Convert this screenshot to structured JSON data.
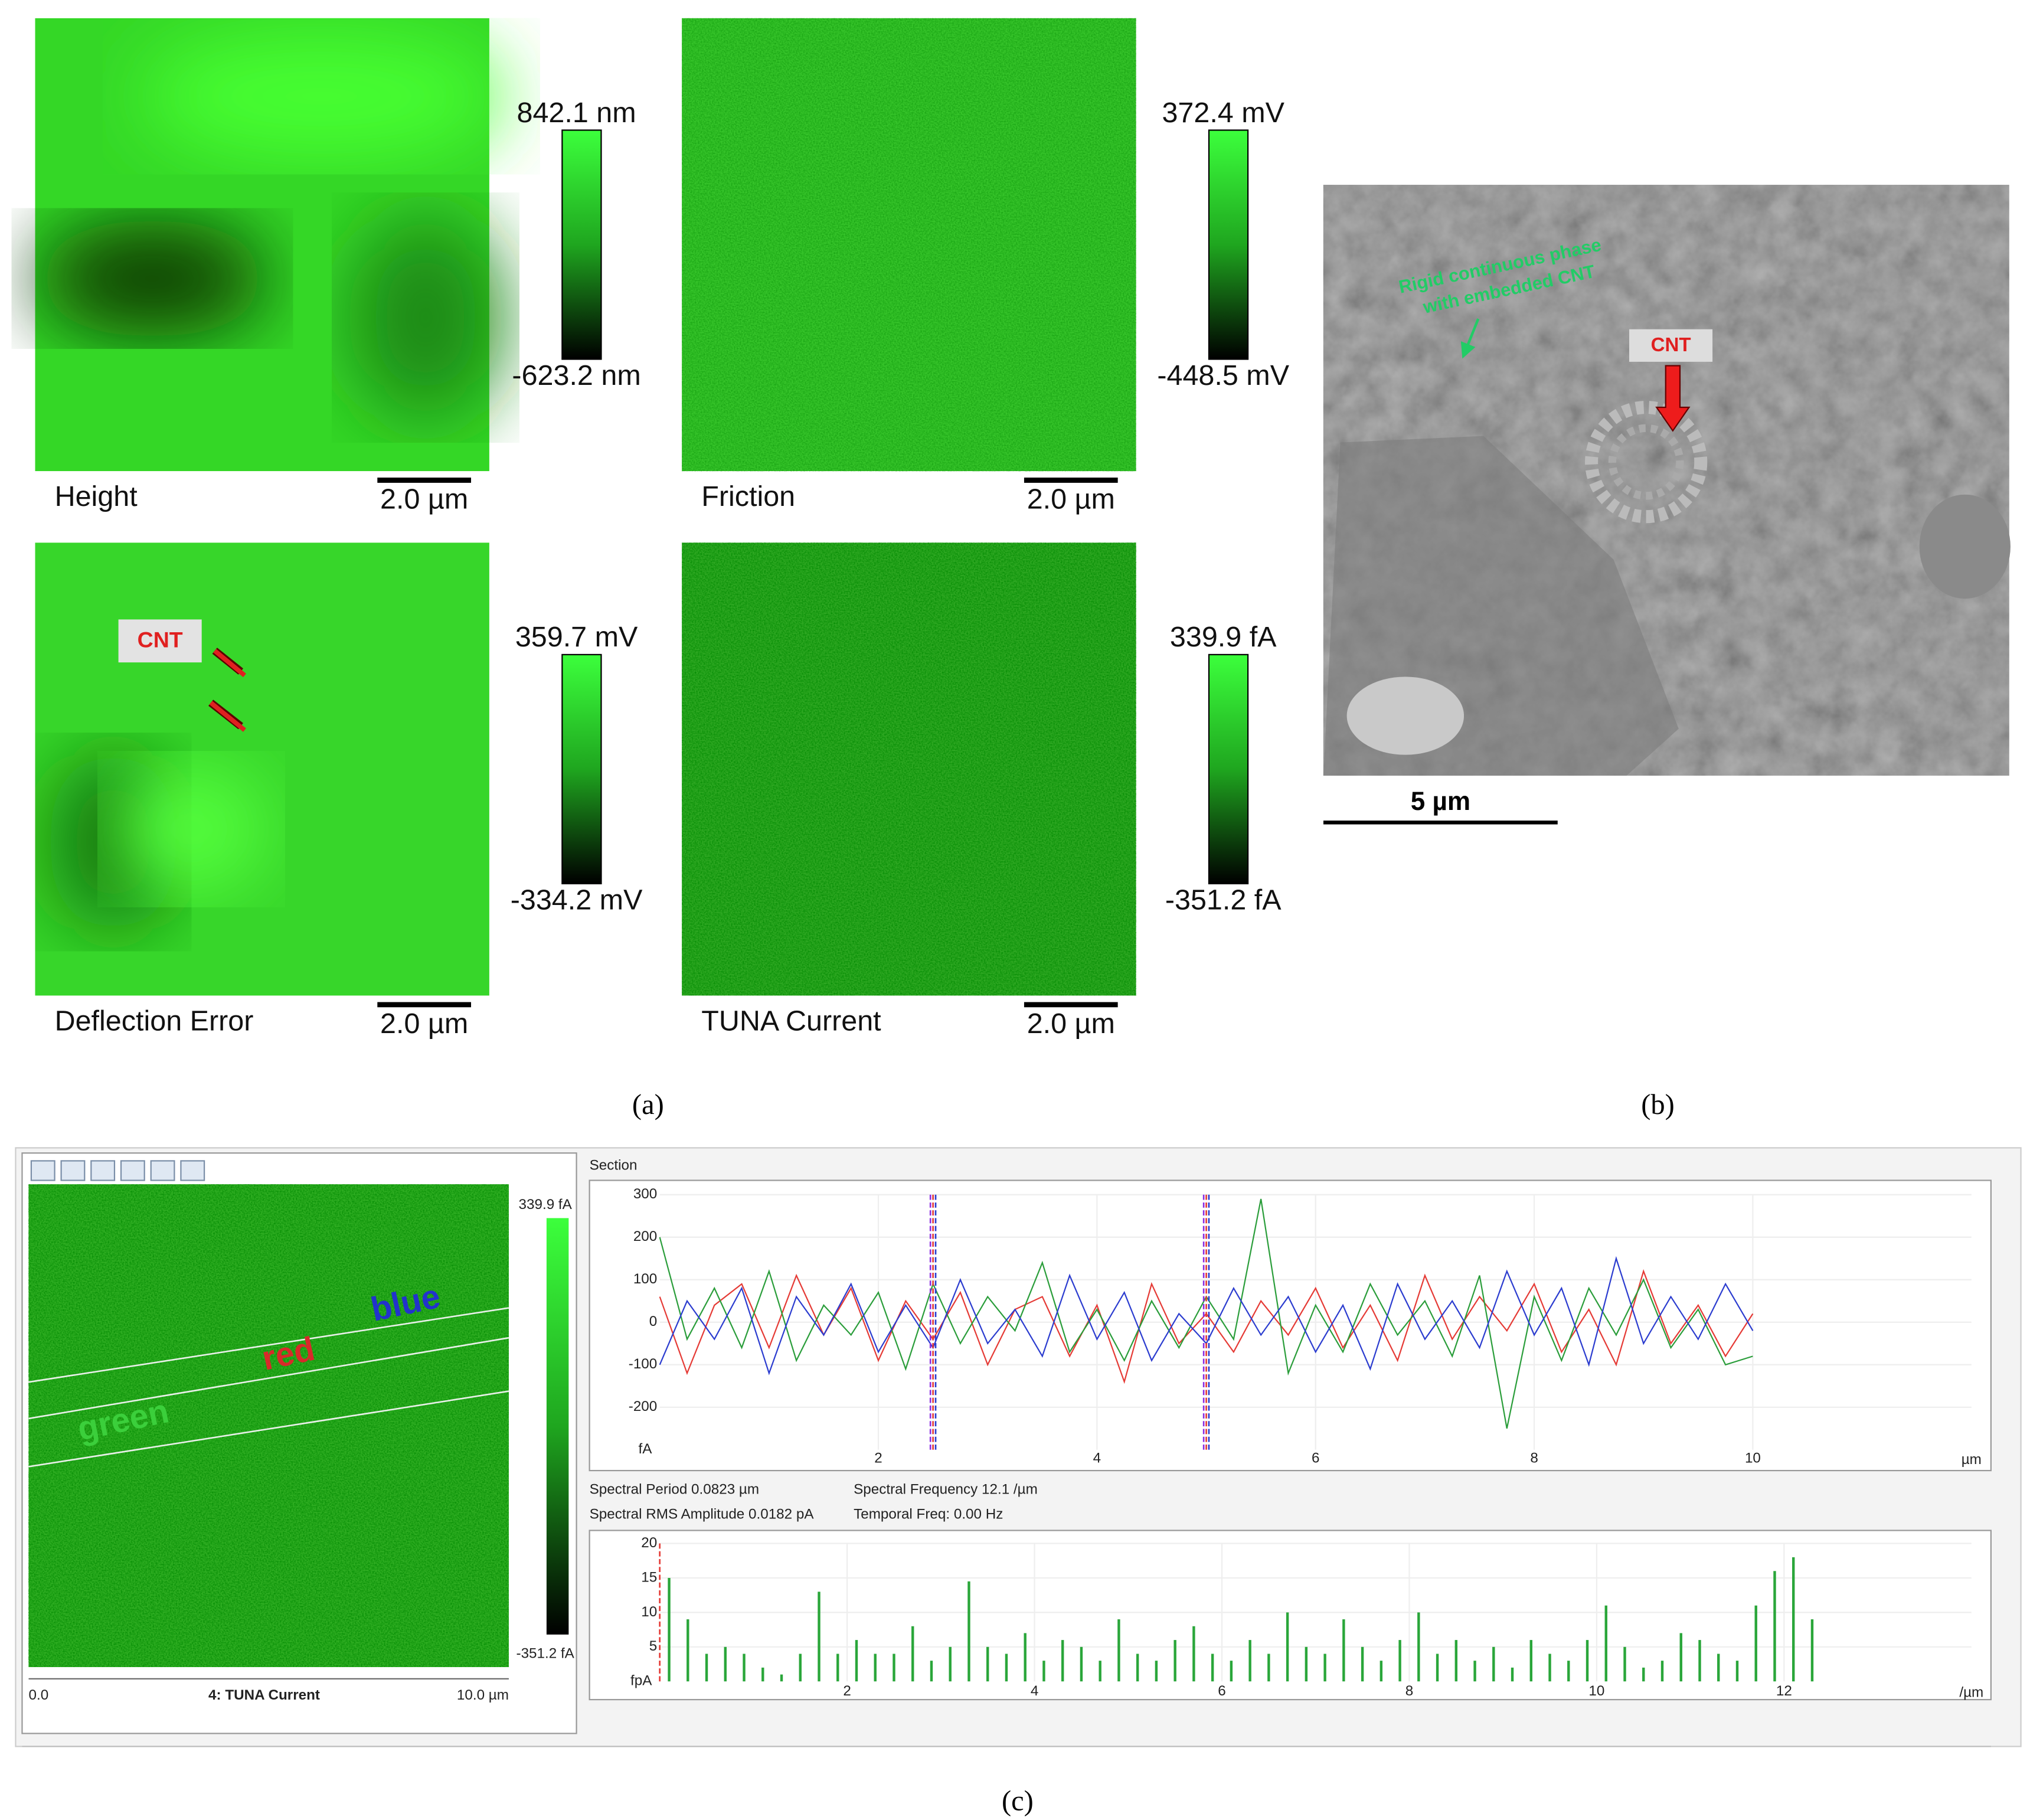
{
  "panel_a": {
    "label": "(a)",
    "annotation": "CNT",
    "images": [
      {
        "name": "Height",
        "scale": "2.0 µm",
        "max": "842.1 nm",
        "min": "-623.2 nm"
      },
      {
        "name": "Friction",
        "scale": "2.0 µm",
        "max": "372.4 mV",
        "min": "-448.5 mV"
      },
      {
        "name": "Deflection Error",
        "scale": "2.0 µm",
        "max": "359.7 mV",
        "min": "-334.2 mV"
      },
      {
        "name": "TUNA Current",
        "scale": "2.0 µm",
        "max": "339.9 fA",
        "min": "-351.2 fA"
      }
    ]
  },
  "panel_b": {
    "label": "(b)",
    "annotation_lines": [
      "Rigid continuous phase",
      "with embedded CNT"
    ],
    "cnt": "CNT",
    "scale": "5 µm"
  },
  "panel_c": {
    "label": "(c)",
    "image": {
      "title": "4: TUNA Current",
      "x_start": "0.0",
      "x_end": "10.0 µm",
      "max": "339.9 fA",
      "min": "-351.2 fA",
      "line_labels": [
        "blue",
        "red",
        "green"
      ]
    },
    "section_title": "Section",
    "stats": [
      "Spectral Period 0.0823 µm",
      "Spectral Frequency 12.1 /µm",
      "Spectral RMS Amplitude 0.0182 pA",
      "Temporal Freq: 0.00 Hz"
    ]
  },
  "chart_data": [
    {
      "type": "line",
      "x_unit": "µm",
      "y_unit": "fA",
      "xlim": [
        0,
        12
      ],
      "ylim": [
        -300,
        300
      ],
      "xticks": [
        2,
        4,
        6,
        8,
        10
      ],
      "yticks": [
        -200,
        -100,
        0,
        100,
        200,
        300
      ],
      "grid": true,
      "cursors": [
        2.5,
        5.0
      ],
      "x": [
        0,
        0.25,
        0.5,
        0.75,
        1,
        1.25,
        1.5,
        1.75,
        2,
        2.25,
        2.5,
        2.75,
        3,
        3.25,
        3.5,
        3.75,
        4,
        4.25,
        4.5,
        4.75,
        5,
        5.25,
        5.5,
        5.75,
        6,
        6.25,
        6.5,
        6.75,
        7,
        7.25,
        7.5,
        7.75,
        8,
        8.25,
        8.5,
        8.75,
        9,
        9.25,
        9.5,
        9.75,
        10
      ],
      "series": [
        {
          "color": "#e53a35",
          "values": [
            60,
            -120,
            40,
            90,
            -60,
            110,
            -30,
            80,
            -90,
            50,
            -40,
            70,
            -100,
            30,
            60,
            -80,
            40,
            -140,
            90,
            -50,
            20,
            -70,
            50,
            -30,
            80,
            -60,
            40,
            -90,
            110,
            -40,
            60,
            -20,
            90,
            -70,
            30,
            -100,
            120,
            -50,
            40,
            -80,
            20
          ]
        },
        {
          "color": "#2a9d3a",
          "values": [
            200,
            -40,
            80,
            -60,
            120,
            -90,
            40,
            -30,
            70,
            -110,
            90,
            -50,
            60,
            -20,
            140,
            -70,
            30,
            -90,
            50,
            -60,
            60,
            -40,
            290,
            -120,
            40,
            -70,
            90,
            -30,
            50,
            -80,
            110,
            -250,
            60,
            -90,
            80,
            -30,
            100,
            -60,
            30,
            -100,
            -80
          ]
        },
        {
          "color": "#2b3ccf",
          "values": [
            -100,
            50,
            -40,
            80,
            -120,
            60,
            -30,
            90,
            -70,
            40,
            -60,
            100,
            -50,
            30,
            -80,
            110,
            -40,
            70,
            -90,
            20,
            -50,
            80,
            -30,
            60,
            -70,
            40,
            -110,
            90,
            -40,
            50,
            -60,
            120,
            -30,
            80,
            -100,
            150,
            -50,
            60,
            -40,
            90,
            -20
          ]
        }
      ]
    },
    {
      "type": "bar",
      "x_unit": "/µm",
      "y_unit": "fpA",
      "xlim": [
        0,
        14
      ],
      "ylim": [
        0,
        20
      ],
      "xticks": [
        2,
        4,
        6,
        8,
        10,
        12
      ],
      "yticks": [
        5,
        10,
        15,
        20
      ],
      "grid": true,
      "color": "#2aa63a",
      "cursors": [
        0
      ],
      "x": [
        0.1,
        0.3,
        0.5,
        0.7,
        0.9,
        1.1,
        1.3,
        1.5,
        1.7,
        1.9,
        2.1,
        2.3,
        2.5,
        2.7,
        2.9,
        3.1,
        3.3,
        3.5,
        3.7,
        3.9,
        4.1,
        4.3,
        4.5,
        4.7,
        4.9,
        5.1,
        5.3,
        5.5,
        5.7,
        5.9,
        6.1,
        6.3,
        6.5,
        6.7,
        6.9,
        7.1,
        7.3,
        7.5,
        7.7,
        7.9,
        8.1,
        8.3,
        8.5,
        8.7,
        8.9,
        9.1,
        9.3,
        9.5,
        9.7,
        9.9,
        10.1,
        10.3,
        10.5,
        10.7,
        10.9,
        11.1,
        11.3,
        11.5,
        11.7,
        11.9,
        12.1,
        12.3
      ],
      "values": [
        15,
        9,
        4,
        5,
        4,
        2,
        1,
        4,
        13,
        4,
        6,
        4,
        4,
        8,
        3,
        5,
        14.5,
        5,
        4,
        7,
        3,
        6,
        5,
        3,
        9,
        4,
        3,
        6,
        8,
        4,
        3,
        6,
        4,
        10,
        5,
        4,
        9,
        5,
        3,
        6,
        10,
        4,
        6,
        3,
        5,
        2,
        6,
        4,
        3,
        6,
        11,
        5,
        2,
        3,
        7,
        6,
        4,
        3,
        11,
        16,
        18,
        9
      ]
    }
  ]
}
